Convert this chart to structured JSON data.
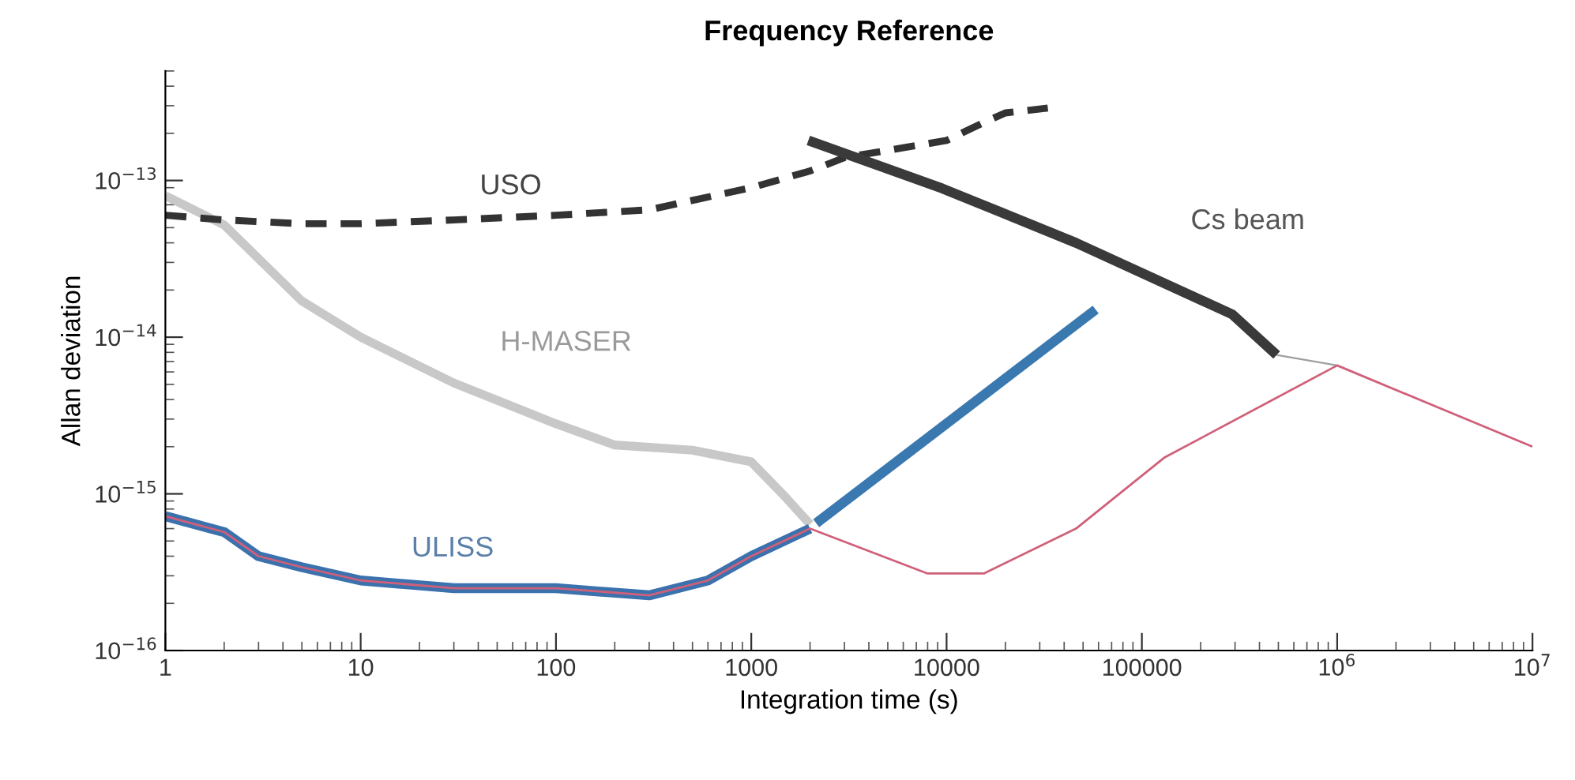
{
  "chart_data": {
    "type": "line",
    "title": "Frequency Reference",
    "xlabel": "Integration time (s)",
    "ylabel": "Allan deviation",
    "log": "xy",
    "grid": false,
    "xlim": [
      1,
      10000000
    ],
    "xticks": [
      1,
      10,
      100,
      1000,
      10000,
      100000,
      {
        "value": 1000000,
        "label": "10$^{6}$"
      },
      {
        "value": 10000000,
        "label": "10$^{7}$"
      }
    ],
    "ylim": [
      1e-16,
      5e-13
    ],
    "yticks": [
      {
        "value": 1e-16,
        "label": "10$^{−16}$"
      },
      {
        "value": 1e-15,
        "label": "10$^{−15}$"
      },
      {
        "value": 1e-14,
        "label": "10$^{−14}$"
      },
      {
        "value": 1e-13,
        "label": "10$^{−13}$"
      }
    ],
    "series": [
      {
        "name": "H-MASER",
        "color": "#c8c8c8",
        "line_style": "solid",
        "x": [
          1,
          2,
          5,
          10,
          30,
          100,
          200,
          500,
          1000,
          1500,
          2000
        ],
        "values": [
          8e-14,
          5.2e-14,
          1.7e-14,
          1e-14,
          5.1e-15,
          2.8e-15,
          2.05e-15,
          1.9e-15,
          1.6e-15,
          9.5e-16,
          6.4e-16
        ]
      },
      {
        "name": "USO",
        "color": "#333333",
        "line_style": "dashed",
        "x": [
          1,
          2,
          5,
          10,
          30,
          100,
          300,
          1000,
          2000,
          3000,
          10000,
          15000,
          20000,
          33000
        ],
        "values": [
          6e-14,
          5.6e-14,
          5.3e-14,
          5.3e-14,
          5.6e-14,
          6e-14,
          6.5e-14,
          9e-14,
          1.15e-13,
          1.4e-13,
          1.8e-13,
          2.3e-13,
          2.7e-13,
          2.9e-13
        ]
      },
      {
        "color": "#a0a0a0",
        "line_style": "solid",
        "x": [
          490000,
          1000000
        ],
        "values": [
          7.7e-15,
          6.6e-15
        ]
      },
      {
        "color": "#3a78b0",
        "line_style": "solid",
        "x": [
          2150,
          58000
        ],
        "values": [
          6.5e-16,
          1.5e-14
        ]
      },
      {
        "name": "Cs beam",
        "color": "#3a3a3a",
        "line_style": "solid",
        "x": [
          1960,
          9500,
          46000,
          290000,
          490000
        ],
        "values": [
          1.8e-13,
          8.9e-14,
          4e-14,
          1.4e-14,
          7.7e-15
        ]
      },
      {
        "name": "ULISS",
        "color": "#3b72ad",
        "line_style": "solid",
        "x": [
          1,
          2,
          3,
          5,
          10,
          30,
          100,
          300,
          600,
          1000,
          2000
        ],
        "values": [
          7.2e-16,
          5.7e-16,
          4e-16,
          3.4e-16,
          2.8e-16,
          2.5e-16,
          2.5e-16,
          2.25e-16,
          2.8e-16,
          4e-16,
          6e-16
        ]
      },
      {
        "color": "#d0607a",
        "line_style": "solid",
        "x": [
          1,
          2,
          3,
          5,
          10,
          30,
          100,
          300,
          600,
          1000,
          2000,
          8000,
          15500,
          46000,
          130000,
          1000000,
          10000000
        ],
        "values": [
          7.2e-16,
          5.7e-16,
          4e-16,
          3.4e-16,
          2.8e-16,
          2.5e-16,
          2.5e-16,
          2.25e-16,
          2.8e-16,
          4e-16,
          6e-16,
          3.1e-16,
          3.1e-16,
          6e-16,
          1.7e-15,
          6.6e-15,
          2e-15
        ]
      }
    ]
  }
}
